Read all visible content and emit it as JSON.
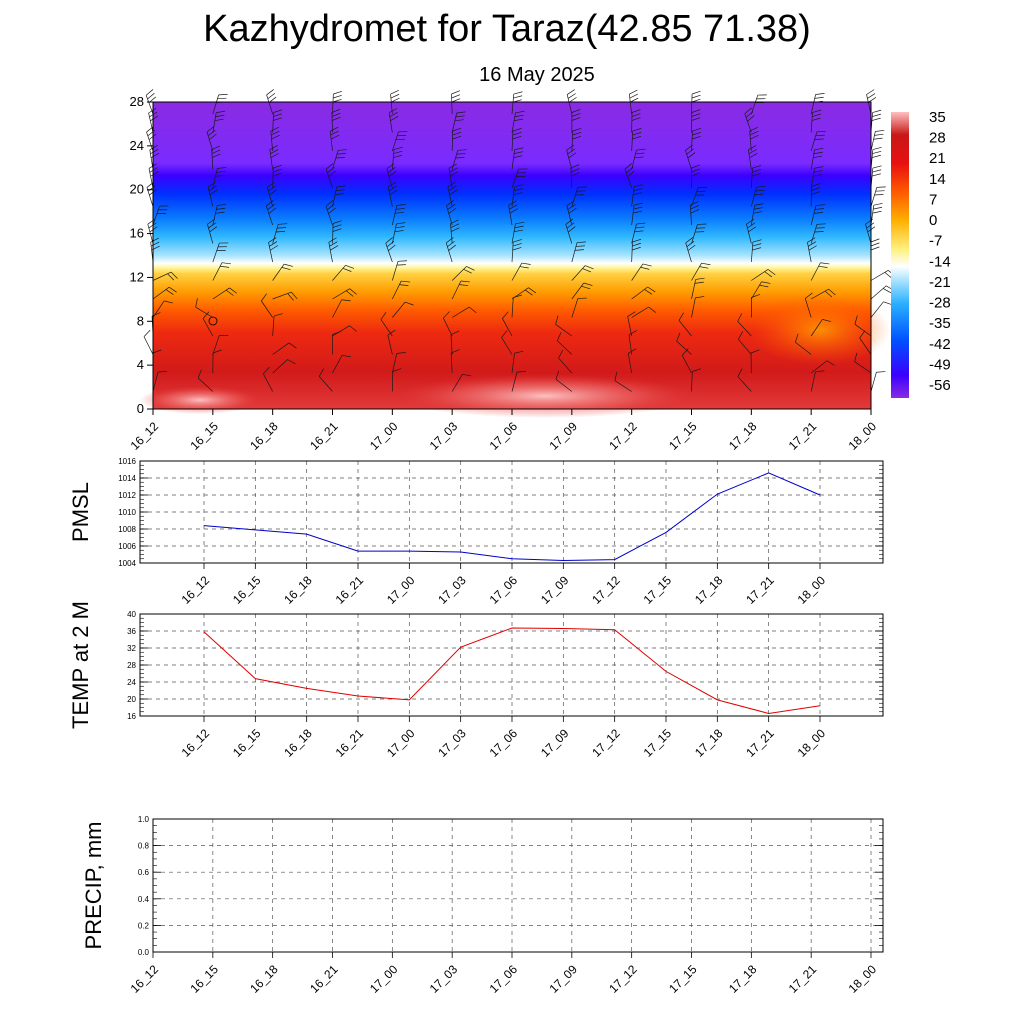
{
  "header": {
    "title": "Kazhydromet for Taraz(42.85 71.38)",
    "subtitle": "16 May 2025"
  },
  "time_labels": [
    "16_12",
    "16_15",
    "16_18",
    "16_21",
    "17_00",
    "17_03",
    "17_06",
    "17_09",
    "17_12",
    "17_15",
    "17_18",
    "17_21",
    "18_00"
  ],
  "colors": {
    "pmsl_line": "#0000cc",
    "temp_line": "#e00000",
    "precip_line": "#006400",
    "grid": "#555555"
  },
  "chart_data": [
    {
      "type": "heatmap",
      "panel": "cross-section",
      "x": [
        "16_12",
        "16_15",
        "16_18",
        "16_21",
        "17_00",
        "17_03",
        "17_06",
        "17_09",
        "17_12",
        "17_15",
        "17_18",
        "17_21",
        "18_00"
      ],
      "y_ticks": [
        0,
        4,
        8,
        12,
        16,
        20,
        24,
        28
      ],
      "ylim": [
        0,
        28
      ],
      "colorbar_labels": [
        35,
        28,
        21,
        14,
        7,
        0,
        -7,
        -14,
        -21,
        -28,
        -35,
        -42,
        -49,
        -56
      ],
      "colorbar_range": [
        -60,
        38
      ],
      "levels_temp_profile": [
        {
          "height": 0,
          "value": 30
        },
        {
          "height": 4,
          "value": 24
        },
        {
          "height": 8,
          "value": 16
        },
        {
          "height": 10,
          "value": 8
        },
        {
          "height": 12,
          "value": -4
        },
        {
          "height": 13,
          "value": -12
        },
        {
          "height": 16,
          "value": -30
        },
        {
          "height": 20,
          "value": -50
        },
        {
          "height": 22,
          "value": -58
        },
        {
          "height": 28,
          "value": -58
        }
      ],
      "wind_barbs": "present",
      "grid": false
    },
    {
      "type": "line",
      "panel": "pmsl",
      "ylabel": "PMSL",
      "x": [
        "16_12",
        "16_15",
        "16_18",
        "16_21",
        "17_00",
        "17_03",
        "17_06",
        "17_09",
        "17_12",
        "17_15",
        "17_18",
        "17_21",
        "18_00"
      ],
      "values": [
        1008.4,
        1007.9,
        1007.4,
        1005.4,
        1005.4,
        1005.3,
        1004.5,
        1004.3,
        1004.4,
        1007.6,
        1012.1,
        1014.6,
        1012.0
      ],
      "ylim": [
        1004,
        1016
      ],
      "y_ticks": [
        1004,
        1006,
        1008,
        1010,
        1012,
        1014,
        1016
      ],
      "grid": true
    },
    {
      "type": "line",
      "panel": "temp",
      "ylabel": "TEMP at 2 M",
      "x": [
        "16_12",
        "16_15",
        "16_18",
        "16_21",
        "17_00",
        "17_03",
        "17_06",
        "17_09",
        "17_12",
        "17_15",
        "17_18",
        "17_21",
        "18_00"
      ],
      "values": [
        35.8,
        24.8,
        22.5,
        20.7,
        19.8,
        32.2,
        36.7,
        36.6,
        36.3,
        26.5,
        19.8,
        16.6,
        18.4
      ],
      "ylim": [
        16,
        40
      ],
      "y_ticks": [
        16,
        20,
        24,
        28,
        32,
        36,
        40
      ],
      "grid": true
    },
    {
      "type": "line",
      "panel": "precip",
      "ylabel": "PRECIP, mm",
      "x": [
        "16_12",
        "16_15",
        "16_18",
        "16_21",
        "17_00",
        "17_03",
        "17_06",
        "17_09",
        "17_12",
        "17_15",
        "17_18",
        "17_21",
        "18_00"
      ],
      "values": [
        0,
        0,
        0,
        0,
        0,
        0,
        0,
        0,
        0,
        0,
        0,
        0,
        0
      ],
      "ylim": [
        0,
        1
      ],
      "y_ticks": [
        "0.0",
        "0.2",
        "0.4",
        "0.6",
        "0.8",
        "1.0"
      ],
      "grid": true
    }
  ]
}
